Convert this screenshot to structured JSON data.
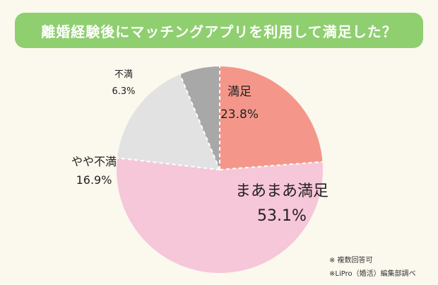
{
  "chart_data": {
    "type": "pie",
    "title": "離婚経験後にマッチングアプリを利用して満足した？",
    "categories": [
      "満足",
      "まあまあ満足",
      "やや不満",
      "不満"
    ],
    "values": [
      23.8,
      53.1,
      16.9,
      6.3
    ],
    "value_labels": [
      "23.8%",
      "53.1%",
      "16.9%",
      "6.3%"
    ],
    "colors": [
      "#f4978a",
      "#f6c6d9",
      "#e2e2e2",
      "#a8a8a8"
    ],
    "start_angle_deg": 0,
    "direction": "clockwise",
    "separator": "white-dashed"
  },
  "notes": [
    "※ 複数回答可",
    "※LiPro（婚活）編集部調べ"
  ]
}
